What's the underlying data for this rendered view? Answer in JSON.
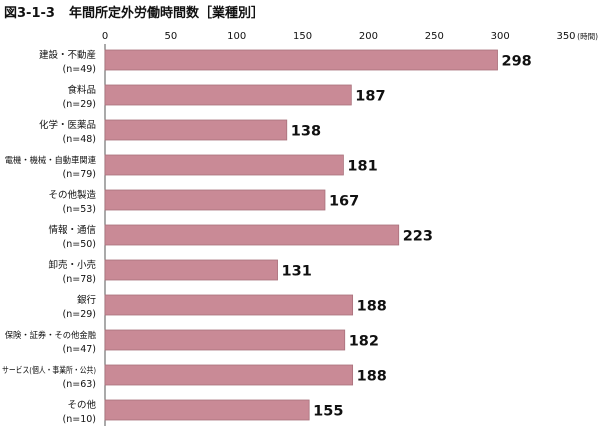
{
  "figure_no": "図3-1-3",
  "title": "年間所定外労働時間数［業種別］",
  "colors": {
    "bar": "#c98a96",
    "bar_stroke": "#a9707b",
    "text": "#111111",
    "axis": "#555555"
  },
  "chart_data": {
    "type": "bar",
    "orientation": "horizontal",
    "categories": [
      "建設・不動産",
      "食料品",
      "化学・医薬品",
      "電機・機械・自動車関連",
      "その他製造",
      "情報・通信",
      "卸売・小売",
      "銀行",
      "保険・証券・その他金融",
      "サービス(個人・事業所・公共)",
      "その他"
    ],
    "sample_sizes": [
      "(n=49)",
      "(n=29)",
      "(n=48)",
      "(n=79)",
      "(n=53)",
      "(n=50)",
      "(n=78)",
      "(n=29)",
      "(n=47)",
      "(n=63)",
      "(n=10)"
    ],
    "values": [
      298,
      187,
      138,
      181,
      167,
      223,
      131,
      188,
      182,
      188,
      155
    ],
    "xlim": [
      0,
      350
    ],
    "xticks": [
      0,
      50,
      100,
      150,
      200,
      250,
      300,
      350
    ],
    "unit_label": "(時間)",
    "xaxis_position": "top",
    "grid": false,
    "legend": "none"
  }
}
